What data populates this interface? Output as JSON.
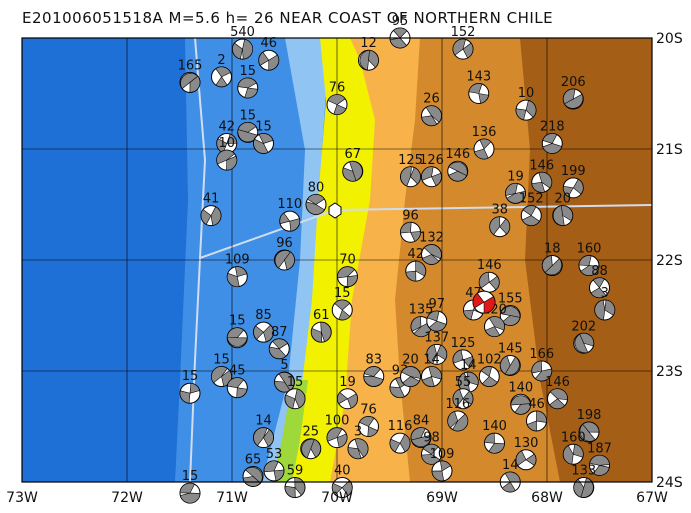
{
  "map": {
    "title": "E201006051518A M=5.6 h= 26 NEAR COAST OF NORTHERN CHILE",
    "lon_labels": [
      "73W",
      "72W",
      "71W",
      "70W",
      "69W",
      "68W",
      "67W"
    ],
    "lat_labels": [
      "20S",
      "21S",
      "22S",
      "23S",
      "24S"
    ],
    "colors": {
      "ocean_deep": "#1e6fd6",
      "ocean_mid": "#3f8fe6",
      "ocean_shallow": "#8fc4f3",
      "coast_green": "#9fd83a",
      "land_low": "#f2f200",
      "land_mid": "#f7b24a",
      "land_high": "#d48a2c",
      "land_peak": "#a55e16",
      "main_event": "#e01818"
    },
    "mechanisms": [
      {
        "label": "165",
        "lon": -71.4,
        "lat": -20.4
      },
      {
        "label": "15",
        "lon": -70.85,
        "lat": -20.45
      },
      {
        "label": "2",
        "lon": -71.1,
        "lat": -20.35
      },
      {
        "label": "540",
        "lon": -70.9,
        "lat": -20.1
      },
      {
        "label": "46",
        "lon": -70.65,
        "lat": -20.2
      },
      {
        "label": "15",
        "lon": -70.85,
        "lat": -20.85
      },
      {
        "label": "15",
        "lon": -70.7,
        "lat": -20.95
      },
      {
        "label": "42",
        "lon": -71.05,
        "lat": -20.95
      },
      {
        "label": "10",
        "lon": -71.05,
        "lat": -21.1
      },
      {
        "label": "76",
        "lon": -70.0,
        "lat": -20.6
      },
      {
        "label": "67",
        "lon": -69.85,
        "lat": -21.2
      },
      {
        "label": "41",
        "lon": -71.2,
        "lat": -21.6
      },
      {
        "label": "110",
        "lon": -70.45,
        "lat": -21.65
      },
      {
        "label": "80",
        "lon": -70.2,
        "lat": -21.5
      },
      {
        "label": "109",
        "lon": -70.95,
        "lat": -22.15
      },
      {
        "label": "96",
        "lon": -70.5,
        "lat": -22.0
      },
      {
        "label": "70",
        "lon": -69.9,
        "lat": -22.15
      },
      {
        "label": "15",
        "lon": -69.95,
        "lat": -22.45
      },
      {
        "label": "61",
        "lon": -70.15,
        "lat": -22.65
      },
      {
        "label": "85",
        "lon": -70.7,
        "lat": -22.65
      },
      {
        "label": "15",
        "lon": -70.95,
        "lat": -22.7
      },
      {
        "label": "87",
        "lon": -70.55,
        "lat": -22.8
      },
      {
        "label": "15",
        "lon": -71.4,
        "lat": -23.2
      },
      {
        "label": "15",
        "lon": -71.1,
        "lat": -23.05
      },
      {
        "label": "45",
        "lon": -70.95,
        "lat": -23.15
      },
      {
        "label": "5",
        "lon": -70.5,
        "lat": -23.1
      },
      {
        "label": "15",
        "lon": -70.4,
        "lat": -23.25
      },
      {
        "label": "19",
        "lon": -69.9,
        "lat": -23.25
      },
      {
        "label": "83",
        "lon": -69.65,
        "lat": -23.05
      },
      {
        "label": "93",
        "lon": -69.4,
        "lat": -23.15
      },
      {
        "label": "25",
        "lon": -70.25,
        "lat": -23.7
      },
      {
        "label": "100",
        "lon": -70.0,
        "lat": -23.6
      },
      {
        "label": "76",
        "lon": -69.7,
        "lat": -23.5
      },
      {
        "label": "3",
        "lon": -69.8,
        "lat": -23.7
      },
      {
        "label": "116",
        "lon": -69.4,
        "lat": -23.65
      },
      {
        "label": "84",
        "lon": -69.2,
        "lat": -23.6
      },
      {
        "label": "98",
        "lon": -69.1,
        "lat": -23.75
      },
      {
        "label": "109",
        "lon": -69.0,
        "lat": -23.9
      },
      {
        "label": "14",
        "lon": -70.7,
        "lat": -23.6
      },
      {
        "label": "53",
        "lon": -70.6,
        "lat": -23.9
      },
      {
        "label": "65",
        "lon": -70.8,
        "lat": -23.95
      },
      {
        "label": "59",
        "lon": -70.4,
        "lat": -24.05
      },
      {
        "label": "40",
        "lon": -69.95,
        "lat": -24.05
      },
      {
        "label": "15",
        "lon": -71.4,
        "lat": -24.1
      },
      {
        "label": "95",
        "lon": -69.4,
        "lat": -20.0
      },
      {
        "label": "12",
        "lon": -69.7,
        "lat": -20.2
      },
      {
        "label": "152",
        "lon": -68.8,
        "lat": -20.1
      },
      {
        "label": "143",
        "lon": -68.65,
        "lat": -20.5
      },
      {
        "label": "26",
        "lon": -69.1,
        "lat": -20.7
      },
      {
        "label": "10",
        "lon": -68.2,
        "lat": -20.65
      },
      {
        "label": "206",
        "lon": -67.75,
        "lat": -20.55
      },
      {
        "label": "218",
        "lon": -67.95,
        "lat": -20.95
      },
      {
        "label": "136",
        "lon": -68.6,
        "lat": -21.0
      },
      {
        "label": "125",
        "lon": -69.3,
        "lat": -21.25
      },
      {
        "label": "126",
        "lon": -69.1,
        "lat": -21.25
      },
      {
        "label": "146",
        "lon": -68.85,
        "lat": -21.2
      },
      {
        "label": "146",
        "lon": -68.05,
        "lat": -21.3
      },
      {
        "label": "199",
        "lon": -67.75,
        "lat": -21.35
      },
      {
        "label": "19",
        "lon": -68.3,
        "lat": -21.4
      },
      {
        "label": "152",
        "lon": -68.15,
        "lat": -21.6
      },
      {
        "label": "20",
        "lon": -67.85,
        "lat": -21.6
      },
      {
        "label": "38",
        "lon": -68.45,
        "lat": -21.7
      },
      {
        "label": "96",
        "lon": -69.3,
        "lat": -21.75
      },
      {
        "label": "132",
        "lon": -69.1,
        "lat": -21.95
      },
      {
        "label": "42",
        "lon": -69.25,
        "lat": -22.1
      },
      {
        "label": "18",
        "lon": -67.95,
        "lat": -22.05
      },
      {
        "label": "160",
        "lon": -67.6,
        "lat": -22.05
      },
      {
        "label": "88",
        "lon": -67.5,
        "lat": -22.25
      },
      {
        "label": "3",
        "lon": -67.45,
        "lat": -22.45
      },
      {
        "label": "146",
        "lon": -68.55,
        "lat": -22.2
      },
      {
        "label": "155",
        "lon": -68.35,
        "lat": -22.5
      },
      {
        "label": "120",
        "lon": -68.5,
        "lat": -22.6
      },
      {
        "label": "47",
        "lon": -68.7,
        "lat": -22.45
      },
      {
        "label": "135",
        "lon": -69.2,
        "lat": -22.6
      },
      {
        "label": "97",
        "lon": -69.05,
        "lat": -22.55
      },
      {
        "label": "202",
        "lon": -67.65,
        "lat": -22.75
      },
      {
        "label": "137",
        "lon": -69.05,
        "lat": -22.85
      },
      {
        "label": "125",
        "lon": -68.8,
        "lat": -22.9
      },
      {
        "label": "20",
        "lon": -69.3,
        "lat": -23.05
      },
      {
        "label": "14",
        "lon": -69.1,
        "lat": -23.05
      },
      {
        "label": "145",
        "lon": -68.35,
        "lat": -22.95
      },
      {
        "label": "166",
        "lon": -68.05,
        "lat": -23.0
      },
      {
        "label": "102",
        "lon": -68.55,
        "lat": -23.05
      },
      {
        "label": "14",
        "lon": -68.75,
        "lat": -23.1
      },
      {
        "label": "55",
        "lon": -68.8,
        "lat": -23.25
      },
      {
        "label": "140",
        "lon": -68.25,
        "lat": -23.3
      },
      {
        "label": "146",
        "lon": -67.9,
        "lat": -23.25
      },
      {
        "label": "46",
        "lon": -68.1,
        "lat": -23.45
      },
      {
        "label": "116",
        "lon": -68.85,
        "lat": -23.45
      },
      {
        "label": "140",
        "lon": -68.5,
        "lat": -23.65
      },
      {
        "label": "198",
        "lon": -67.6,
        "lat": -23.55
      },
      {
        "label": "160",
        "lon": -67.75,
        "lat": -23.75
      },
      {
        "label": "130",
        "lon": -68.2,
        "lat": -23.8
      },
      {
        "label": "187",
        "lon": -67.5,
        "lat": -23.85
      },
      {
        "label": "14",
        "lon": -68.35,
        "lat": -24.0
      },
      {
        "label": "133",
        "lon": -67.65,
        "lat": -24.05
      }
    ]
  }
}
